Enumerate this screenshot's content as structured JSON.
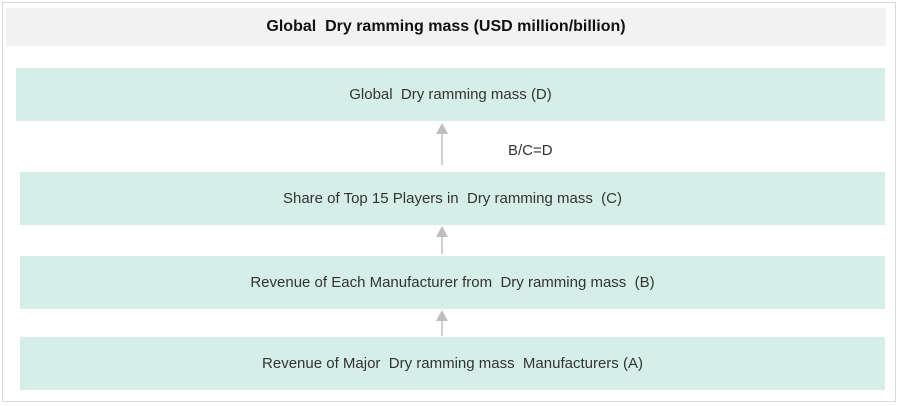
{
  "title": "Global  Dry ramming mass (USD million/billion)",
  "boxes": {
    "d": "Global  Dry ramming mass (D)",
    "c": "Share of Top 15 Players in  Dry ramming mass  (C)",
    "b": "Revenue of Each Manufacturer from  Dry ramming mass  (B)",
    "a": "Revenue of Major  Dry ramming mass  Manufacturers (A)"
  },
  "formula": "B/C=D",
  "colors": {
    "box_fill": "#d5efe8",
    "header_fill": "#f2f2f2",
    "arrow": "#bfbfbf"
  }
}
